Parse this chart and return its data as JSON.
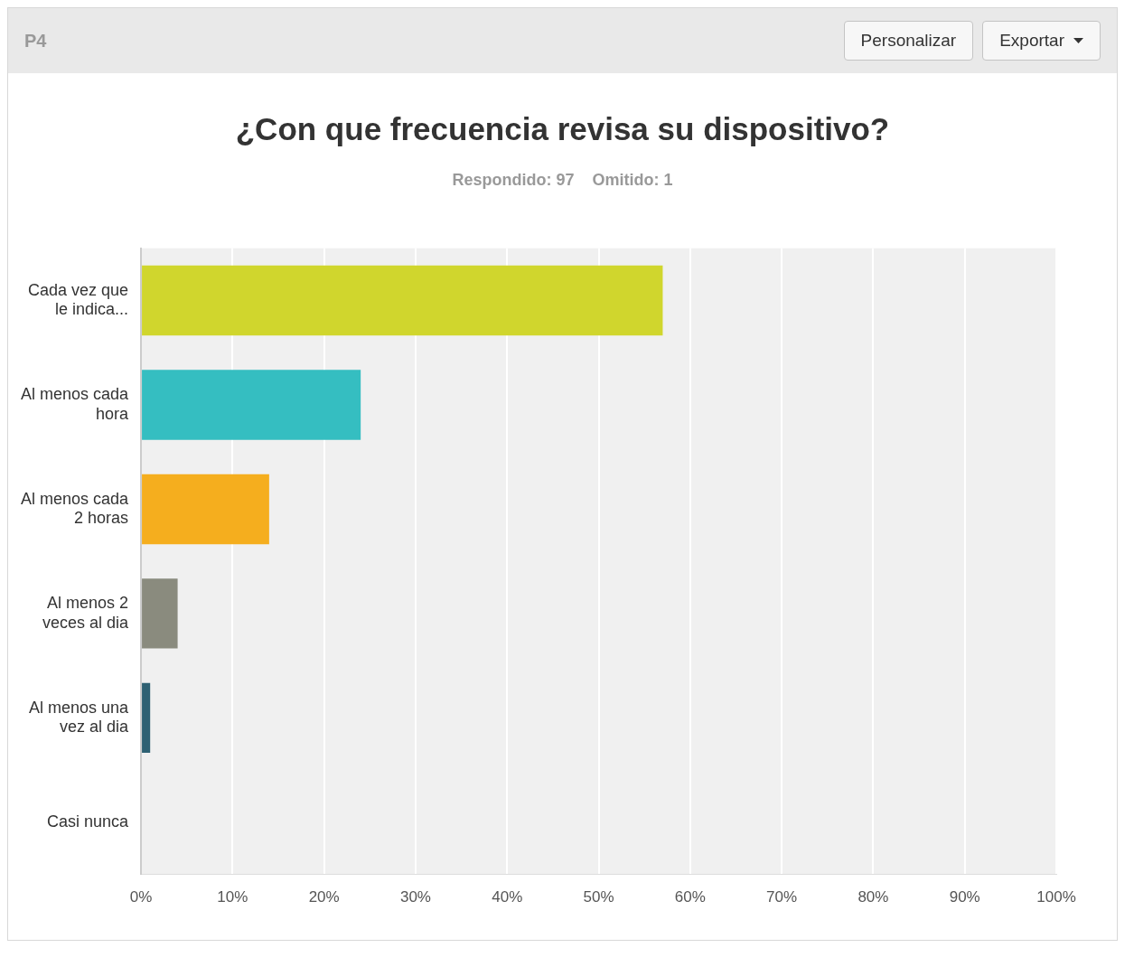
{
  "chart_data": {
    "type": "bar",
    "orientation": "horizontal",
    "title": "¿Con que frecuencia revisa su dispositivo?",
    "subtitle": "Respondido: 97    Omitido: 1",
    "annotations": [
      "P4",
      "Personalizar",
      "Exportar"
    ],
    "categories": [
      "Cada vez que le indica...",
      "Al menos cada hora",
      "Al menos cada 2 horas",
      "Al menos 2 veces al dia",
      "Al menos una vez al dia",
      "Casi nunca"
    ],
    "values": [
      57,
      24,
      14,
      4,
      1,
      0
    ],
    "colors": [
      "#d0d62d",
      "#35bec1",
      "#f5ae1e",
      "#8a8b7e",
      "#2e6173",
      "#7b5c8a"
    ],
    "xlim": [
      0,
      100
    ],
    "xticks": [
      {
        "value": 0,
        "label": "0%"
      },
      {
        "value": 10,
        "label": "10%"
      },
      {
        "value": 20,
        "label": "20%"
      },
      {
        "value": 30,
        "label": "30%"
      },
      {
        "value": 40,
        "label": "40%"
      },
      {
        "value": 50,
        "label": "50%"
      },
      {
        "value": 60,
        "label": "60%"
      },
      {
        "value": 70,
        "label": "70%"
      },
      {
        "value": 80,
        "label": "80%"
      },
      {
        "value": 90,
        "label": "90%"
      },
      {
        "value": 100,
        "label": "100%"
      }
    ],
    "grid": "x",
    "legend": false
  }
}
